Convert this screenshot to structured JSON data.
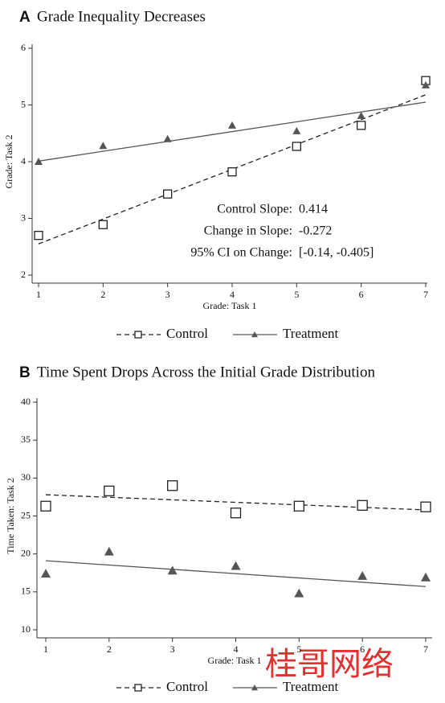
{
  "chart_data": [
    {
      "type": "scatter",
      "panel": "A",
      "title": "Grade Inequality Decreases",
      "x_label": "Grade: Task 1",
      "y_label": "Grade: Task 2",
      "x": [
        1,
        2,
        3,
        4,
        5,
        6,
        7
      ],
      "xlim": [
        1,
        7
      ],
      "xticks": [
        1,
        2,
        3,
        4,
        5,
        6,
        7
      ],
      "ylim": [
        2,
        6
      ],
      "yticks": [
        2,
        3,
        4,
        5,
        6
      ],
      "series": [
        {
          "name": "Control",
          "color": "#222222",
          "marker": "square",
          "linestyle": "dashed",
          "values": [
            2.7,
            2.89,
            3.43,
            3.82,
            4.27,
            4.64,
            5.43
          ],
          "fit_values": [
            2.55,
            5.18
          ]
        },
        {
          "name": "Treatment",
          "color": "#555555",
          "marker": "triangle",
          "linestyle": "solid",
          "values": [
            4.0,
            4.28,
            4.4,
            4.64,
            4.54,
            4.81,
            5.35
          ],
          "fit_values": [
            4.01,
            5.05
          ]
        }
      ],
      "annotations": [
        {
          "label": "Control Slope:",
          "value": "0.414"
        },
        {
          "label": "Change in Slope:",
          "value": "-0.272"
        },
        {
          "label": "95% CI on Change:",
          "value": "[-0.14, -0.405]"
        }
      ]
    },
    {
      "type": "scatter",
      "panel": "B",
      "title": "Time Spent Drops Across the Initial Grade Distribution",
      "x_label": "Grade: Task 1",
      "y_label": "Time Taken: Task 2",
      "x": [
        1,
        2,
        3,
        4,
        5,
        6,
        7
      ],
      "xlim": [
        1,
        7
      ],
      "xticks": [
        1,
        2,
        3,
        4,
        5,
        6,
        7
      ],
      "ylim": [
        10,
        40
      ],
      "yticks": [
        10,
        15,
        20,
        25,
        30,
        35,
        40
      ],
      "series": [
        {
          "name": "Control",
          "color": "#222222",
          "marker": "square",
          "linestyle": "dashed",
          "values": [
            26.3,
            28.3,
            29.0,
            25.4,
            26.3,
            26.4,
            26.2
          ],
          "fit_values": [
            27.8,
            25.8
          ]
        },
        {
          "name": "Treatment",
          "color": "#555555",
          "marker": "triangle",
          "linestyle": "solid",
          "values": [
            17.4,
            20.3,
            17.8,
            18.4,
            14.8,
            17.1,
            16.9
          ],
          "fit_values": [
            19.1,
            15.7
          ]
        }
      ]
    }
  ],
  "watermark": "桂哥网络"
}
